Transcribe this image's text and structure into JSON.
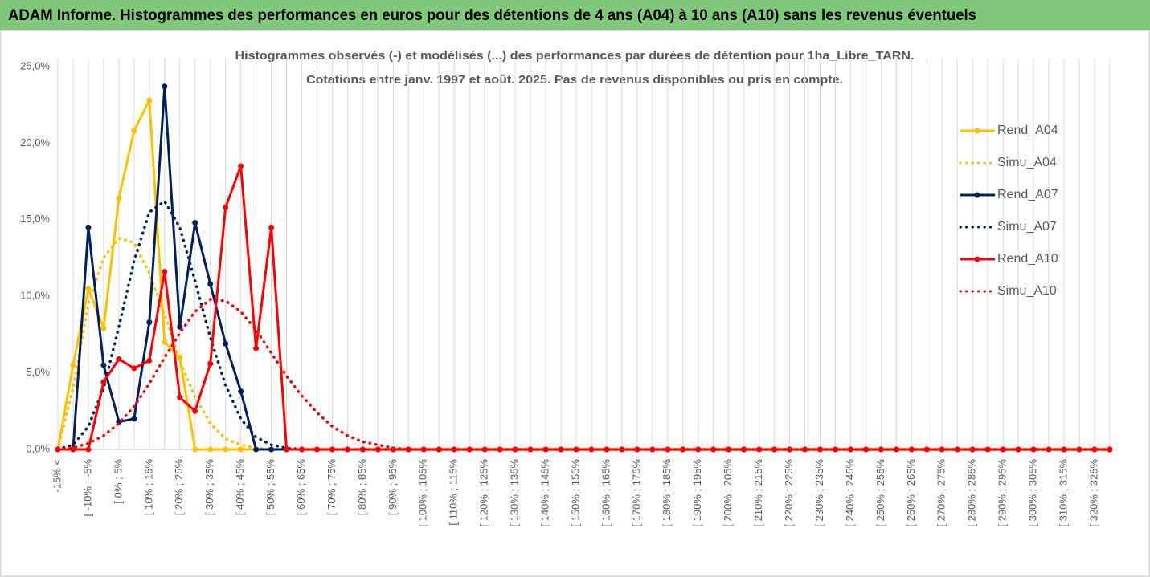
{
  "chart_data": {
    "type": "line",
    "title": "ADAM Informe. Histogrammes des performances en euros pour des détentions de 4 ans (A04) à 10 ans (A10) sans les revenus éventuels",
    "subtitle": [
      "Histogrammes observés (-) et modélisés (...) des performances par durées de détention pour 1ha_Libre_TARN.",
      "Cotations entre janv. 1997 et août. 2025. Pas de revenus disponibles ou pris en compte."
    ],
    "categories": [
      "-15% <",
      null,
      "[ -10% ; -5%",
      null,
      "[ 0% ; 5%",
      null,
      "[ 10% ; 15%",
      null,
      "[ 20% ; 25%",
      null,
      "[ 30% ; 35%",
      null,
      "[ 40% ; 45%",
      null,
      "[ 50% ; 55%",
      null,
      "[ 60% ; 65%",
      null,
      "[ 70% ; 75%",
      null,
      "[ 80% ; 85%",
      null,
      "[ 90% ; 95%",
      null,
      "[ 100% ; 105%",
      null,
      "[ 110% ; 115%",
      null,
      "[ 120% ; 125%",
      null,
      "[ 130% ; 135%",
      null,
      "[ 140% ; 145%",
      null,
      "[ 150% ; 155%",
      null,
      "[ 160% ; 165%",
      null,
      "[ 170% ; 175%",
      null,
      "[ 180% ; 185%",
      null,
      "[ 190% ; 195%",
      null,
      "[ 200% ; 205%",
      null,
      "[ 210% ; 215%",
      null,
      "[ 220% ; 225%",
      null,
      "[ 230% ; 235%",
      null,
      "[ 240% ; 245%",
      null,
      "[ 250% ; 255%",
      null,
      "[ 260% ; 265%",
      null,
      "[ 270% ; 275%",
      null,
      "[ 280% ; 285%",
      null,
      "[ 290% ; 295%",
      null,
      "[ 300% ; 305%",
      null,
      "[ 310% ; 315%",
      null,
      "[ 320% ; 325%",
      null
    ],
    "series": [
      {
        "name": "Rend_A04",
        "color": "#ffc000",
        "style": "solid",
        "values": [
          0,
          5.5,
          10.5,
          7.9,
          16.4,
          20.8,
          22.8,
          7,
          6,
          0,
          0,
          0,
          0,
          0,
          0,
          0,
          0,
          0,
          0,
          0,
          0,
          0,
          0,
          0,
          0,
          0,
          0,
          0,
          0,
          0,
          0,
          0,
          0,
          0,
          0,
          0,
          0,
          0,
          0,
          0,
          0,
          0,
          0,
          0,
          0,
          0,
          0,
          0,
          0,
          0,
          0,
          0,
          0,
          0,
          0,
          0,
          0,
          0,
          0,
          0,
          0,
          0,
          0,
          0,
          0,
          0,
          0,
          0,
          0,
          0
        ]
      },
      {
        "name": "Simu_A04",
        "color": "#ffc000",
        "style": "dotted",
        "values": [
          0,
          4,
          9.5,
          12.5,
          13.8,
          13.5,
          11.5,
          8.8,
          5.8,
          3.4,
          1.7,
          0.7,
          0.3,
          0.1,
          0,
          0,
          0,
          0,
          0,
          0,
          0,
          0,
          0,
          0,
          0,
          0,
          0,
          0,
          0,
          0,
          0,
          0,
          0,
          0,
          0,
          0,
          0,
          0,
          0,
          0,
          0,
          0,
          0,
          0,
          0,
          0,
          0,
          0,
          0,
          0,
          0,
          0,
          0,
          0,
          0,
          0,
          0,
          0,
          0,
          0,
          0,
          0,
          0,
          0,
          0,
          0,
          0,
          0,
          0,
          0
        ]
      },
      {
        "name": "Rend_A07",
        "color": "#002060",
        "style": "solid",
        "values": [
          0,
          0,
          14.5,
          5.5,
          1.8,
          2,
          8.3,
          23.7,
          8,
          14.8,
          10.8,
          6.9,
          3.8,
          0,
          0,
          0,
          0,
          0,
          0,
          0,
          0,
          0,
          0,
          0,
          0,
          0,
          0,
          0,
          0,
          0,
          0,
          0,
          0,
          0,
          0,
          0,
          0,
          0,
          0,
          0,
          0,
          0,
          0,
          0,
          0,
          0,
          0,
          0,
          0,
          0,
          0,
          0,
          0,
          0,
          0,
          0,
          0,
          0,
          0,
          0,
          0,
          0,
          0,
          0,
          0,
          0,
          0,
          0,
          0,
          0
        ]
      },
      {
        "name": "Simu_A07",
        "color": "#002060",
        "style": "dotted",
        "values": [
          0,
          0.3,
          1.5,
          4,
          8,
          12.3,
          15.5,
          16.2,
          14.5,
          11,
          7.3,
          4.2,
          2,
          0.8,
          0.3,
          0.1,
          0,
          0,
          0,
          0,
          0,
          0,
          0,
          0,
          0,
          0,
          0,
          0,
          0,
          0,
          0,
          0,
          0,
          0,
          0,
          0,
          0,
          0,
          0,
          0,
          0,
          0,
          0,
          0,
          0,
          0,
          0,
          0,
          0,
          0,
          0,
          0,
          0,
          0,
          0,
          0,
          0,
          0,
          0,
          0,
          0,
          0,
          0,
          0,
          0,
          0,
          0,
          0,
          0,
          0
        ]
      },
      {
        "name": "Rend_A10",
        "color": "#ff0000",
        "style": "solid",
        "values": [
          0,
          0,
          0,
          4.4,
          5.9,
          5.3,
          5.8,
          11.6,
          3.4,
          2.5,
          5.6,
          15.8,
          18.5,
          6.6,
          14.5,
          0,
          0,
          0,
          0,
          0,
          0,
          0,
          0,
          0,
          0,
          0,
          0,
          0,
          0,
          0,
          0,
          0,
          0,
          0,
          0,
          0,
          0,
          0,
          0,
          0,
          0,
          0,
          0,
          0,
          0,
          0,
          0,
          0,
          0,
          0,
          0,
          0,
          0,
          0,
          0,
          0,
          0,
          0,
          0,
          0,
          0,
          0,
          0,
          0,
          0,
          0,
          0,
          0,
          0,
          0
        ]
      },
      {
        "name": "Simu_A10",
        "color": "#ff0000",
        "style": "dotted",
        "values": [
          0,
          0.1,
          0.4,
          0.9,
          1.7,
          2.8,
          4.3,
          6,
          7.6,
          9,
          9.8,
          9.7,
          9,
          7.8,
          6.3,
          4.8,
          3.5,
          2.4,
          1.5,
          0.9,
          0.5,
          0.3,
          0.1,
          0,
          0,
          0,
          0,
          0,
          0,
          0,
          0,
          0,
          0,
          0,
          0,
          0,
          0,
          0,
          0,
          0,
          0,
          0,
          0,
          0,
          0,
          0,
          0,
          0,
          0,
          0,
          0,
          0,
          0,
          0,
          0,
          0,
          0,
          0,
          0,
          0,
          0,
          0,
          0,
          0,
          0,
          0,
          0,
          0,
          0,
          0
        ]
      }
    ],
    "ylim": [
      0,
      25
    ],
    "yticks": [
      {
        "value": 0,
        "label": "0,0%"
      },
      {
        "value": 5,
        "label": "5,0%"
      },
      {
        "value": 10,
        "label": "10,0%"
      },
      {
        "value": 15,
        "label": "15,0%"
      },
      {
        "value": 20,
        "label": "20,0%"
      },
      {
        "value": 25,
        "label": "25,0%"
      }
    ],
    "grid": true,
    "legend": "right"
  }
}
